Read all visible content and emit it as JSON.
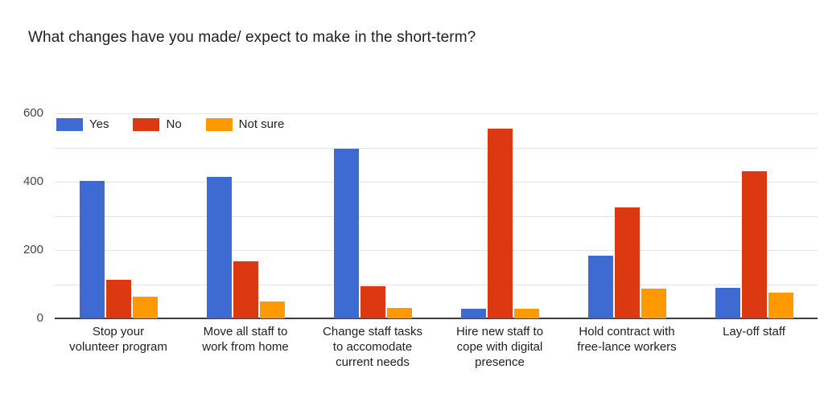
{
  "chart_data": {
    "type": "bar",
    "title": "What changes have you made/ expect to make in the short-term?",
    "categories": [
      "Stop your volunteer program",
      "Move all staff to work from home",
      "Change staff tasks to accomodate current needs",
      "Hire new staff to cope with digital presence",
      "Hold contract with free-lance workers",
      "Lay-off staff"
    ],
    "category_lines": [
      [
        "Stop your",
        "volunteer program"
      ],
      [
        "Move all staff to",
        "work from home"
      ],
      [
        "Change staff tasks",
        "to accomodate",
        "current needs"
      ],
      [
        "Hire new staff to",
        "cope with digital",
        "presence"
      ],
      [
        "Hold contract with",
        "free-lance workers"
      ],
      [
        "Lay-off staff"
      ]
    ],
    "series": [
      {
        "name": "Yes",
        "color": "#3e6bd2",
        "values": [
          402,
          415,
          497,
          28,
          184,
          90
        ]
      },
      {
        "name": "No",
        "color": "#dc3912",
        "values": [
          113,
          168,
          95,
          555,
          325,
          430
        ]
      },
      {
        "name": "Not sure",
        "color": "#ff9900",
        "values": [
          63,
          50,
          31,
          28,
          86,
          76
        ]
      }
    ],
    "y_axis": {
      "min": 0,
      "max": 600,
      "tick_labels": [
        0,
        200,
        400,
        600
      ],
      "gridline_step": 100
    },
    "legend_position": "top-left",
    "grid": true,
    "colors": {
      "gridline": "#e3e3e3",
      "axis_baseline": "#3d3d3d",
      "tick_text": "#444444",
      "label_text": "#212121"
    }
  }
}
